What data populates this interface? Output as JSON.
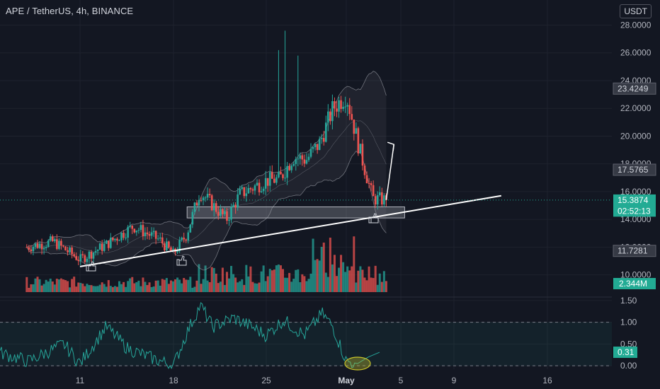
{
  "header": {
    "symbol_title": "APE / TetherUS, 4h, BINANCE",
    "currency_button": "USDT"
  },
  "colors": {
    "background": "#131722",
    "grid": "#1e222d",
    "up": "#26a69a",
    "down": "#ef5350",
    "text": "#b2b5be",
    "white": "#ffffff",
    "band": "#9598a1",
    "highlight": "#c6c22a"
  },
  "chart_data": [
    {
      "type": "candlestick",
      "title": "APE / TetherUS, 4h, BINANCE",
      "ylim": [
        8.4,
        29.3
      ],
      "y_ticks": [
        "10.0000",
        "12.0000",
        "14.0000",
        "16.0000",
        "18.0000",
        "20.0000",
        "22.0000",
        "24.0000",
        "26.0000",
        "28.0000"
      ],
      "x_ticks": [
        "11",
        "18",
        "25",
        "May",
        "5",
        "9",
        "16"
      ],
      "price_labels": [
        {
          "value": 23.4249,
          "text": "23.4249",
          "style": "gray"
        },
        {
          "value": 17.5765,
          "text": "17.5765",
          "style": "gray"
        },
        {
          "value": 15.3874,
          "text": "15.3874",
          "style": "green"
        },
        {
          "value": 14.6,
          "text": "02:52:13",
          "style": "green"
        },
        {
          "value": 11.7281,
          "text": "11.7281",
          "style": "gray"
        }
      ],
      "last_price": 15.3874,
      "volume_label": "2.344M",
      "anchors": [
        {
          "date": "Apr 7",
          "price": 12.0
        },
        {
          "date": "Apr 9",
          "price": 12.4
        },
        {
          "date": "Apr 11",
          "price": 11.1
        },
        {
          "date": "Apr 13",
          "price": 12.2
        },
        {
          "date": "Apr 15",
          "price": 13.5
        },
        {
          "date": "Apr 17",
          "price": 12.5
        },
        {
          "date": "Apr 18",
          "price": 11.5
        },
        {
          "date": "Apr 19",
          "price": 12.9
        },
        {
          "date": "Apr 20",
          "price": 16.0
        },
        {
          "date": "Apr 21",
          "price": 15.0
        },
        {
          "date": "Apr 22",
          "price": 14.0
        },
        {
          "date": "Apr 23",
          "price": 15.8
        },
        {
          "date": "Apr 25",
          "price": 16.8
        },
        {
          "date": "Apr 26",
          "price": 16.9
        },
        {
          "date": "Apr 27",
          "price": 18.5
        },
        {
          "date": "Apr 28",
          "price": 18.3
        },
        {
          "date": "Apr 29",
          "price": 19.5
        },
        {
          "date": "Apr 30",
          "price": 22.0
        },
        {
          "date": "May 1",
          "price": 23.0
        },
        {
          "date": "May 2",
          "price": 19.0
        },
        {
          "date": "May 3",
          "price": 15.5
        },
        {
          "date": "May 4",
          "price": 15.39
        }
      ],
      "annotations": {
        "trendline": [
          {
            "date": "Apr 11",
            "price": 10.6
          },
          {
            "date": "May 12",
            "price": 15.7
          }
        ],
        "arrow": [
          {
            "date": "May 4",
            "price": 15.4
          },
          {
            "date": "May 5",
            "price": 19.4
          }
        ],
        "zone": {
          "from_date": "Apr 20",
          "to_date": "May 4",
          "low": 14.1,
          "high": 14.9
        }
      }
    },
    {
      "type": "line",
      "name": "oscillator",
      "ylim": [
        -0.08,
        1.58
      ],
      "y_ticks": [
        "0.00",
        "0.50",
        "1.00",
        "1.50"
      ],
      "dashed_levels": [
        0.0,
        1.0
      ],
      "last_value": 0.31,
      "last_label": "0.31"
    }
  ]
}
